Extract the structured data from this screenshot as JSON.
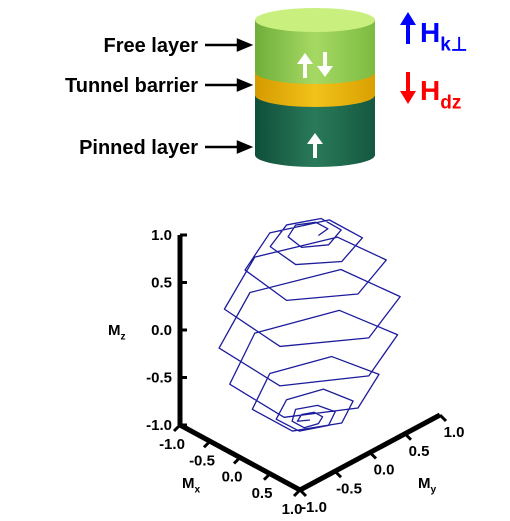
{
  "diagram": {
    "layers": [
      "Free layer",
      "Tunnel barrier",
      "Pinned layer"
    ],
    "fields": [
      {
        "symbol": "H",
        "subscript": "k⊥",
        "color": "#0000ff"
      },
      {
        "symbol": "H",
        "subscript": "dz",
        "color": "#ff0000"
      }
    ]
  },
  "chart_data": {
    "type": "line3d",
    "color": "#1c1c9c",
    "xlabel": {
      "symbol": "M",
      "subscript": "x"
    },
    "ylabel": {
      "symbol": "M",
      "subscript": "y"
    },
    "zlabel": {
      "symbol": "M",
      "subscript": "z"
    },
    "xlim": [
      -1,
      1
    ],
    "ylim": [
      -1,
      1
    ],
    "zlim": [
      -1,
      1
    ],
    "xticks": [
      {
        "value": -1,
        "label": "-1.0"
      },
      {
        "value": -0.5,
        "label": "-0.5"
      },
      {
        "value": 0,
        "label": "0.0"
      },
      {
        "value": 0.5,
        "label": "0.5"
      },
      {
        "value": 1,
        "label": "1.0"
      }
    ],
    "yticks": [
      {
        "value": -1,
        "label": "-1.0"
      },
      {
        "value": -0.5,
        "label": "-0.5"
      },
      {
        "value": 0,
        "label": "0.0"
      },
      {
        "value": 0.5,
        "label": "0.5"
      },
      {
        "value": 1,
        "label": "1.0"
      }
    ],
    "zticks": [
      {
        "value": -1,
        "label": "-1.0"
      },
      {
        "value": -0.5,
        "label": "-0.5"
      },
      {
        "value": 0,
        "label": "0.0"
      },
      {
        "value": 0.5,
        "label": "0.5"
      },
      {
        "value": 1,
        "label": "1.0"
      }
    ],
    "mx": [
      0.14,
      0.1,
      -0.1,
      -0.24,
      -0.12,
      0.14,
      0.31,
      0.17,
      -0.19,
      -0.39,
      -0.22,
      0.24,
      0.53,
      0.29,
      -0.32,
      -0.67,
      -0.36,
      0.38,
      0.8,
      0.42,
      -0.44,
      -0.92,
      -0.47,
      0.48,
      0.98,
      0.5,
      -0.5,
      -1.0,
      -0.5,
      0.5,
      0.98,
      0.48,
      -0.47,
      -0.92,
      -0.44,
      0.42,
      0.8,
      0.38,
      -0.36,
      -0.67,
      -0.32,
      0.29,
      0.53,
      0.24,
      -0.22,
      -0.39,
      -0.19,
      0.17,
      0.31,
      0.14,
      -0.12,
      -0.24,
      -0.1,
      0.1,
      0.14,
      0.07,
      -0.07,
      -0.14,
      -0.07,
      0
    ],
    "my": [
      0,
      0.17,
      0.17,
      0,
      -0.21,
      -0.24,
      0,
      0.3,
      0.32,
      0,
      -0.38,
      -0.41,
      0,
      0.5,
      0.55,
      0,
      -0.62,
      -0.66,
      0,
      0.73,
      0.77,
      0,
      -0.82,
      -0.84,
      0,
      0.86,
      0.87,
      0,
      -0.87,
      -0.86,
      0,
      0.84,
      0.82,
      0,
      -0.77,
      -0.73,
      0,
      0.66,
      0.62,
      0,
      -0.55,
      -0.5,
      0,
      0.41,
      0.38,
      0,
      -0.32,
      -0.3,
      0,
      0.24,
      0.21,
      0,
      -0.17,
      -0.17,
      0,
      0.12,
      0.12,
      0,
      -0.12,
      0
    ],
    "mz": [
      0.99,
      0.98,
      0.98,
      0.97,
      0.97,
      0.96,
      0.95,
      0.94,
      0.93,
      0.92,
      0.9,
      0.88,
      0.85,
      0.82,
      0.78,
      0.74,
      0.7,
      0.65,
      0.6,
      0.54,
      0.47,
      0.4,
      0.33,
      0.27,
      0.2,
      0.13,
      0.07,
      0.0,
      -0.07,
      -0.13,
      -0.2,
      -0.27,
      -0.33,
      -0.4,
      -0.47,
      -0.54,
      -0.6,
      -0.65,
      -0.7,
      -0.74,
      -0.78,
      -0.82,
      -0.85,
      -0.88,
      -0.9,
      -0.92,
      -0.93,
      -0.94,
      -0.95,
      -0.96,
      -0.97,
      -0.97,
      -0.98,
      -0.98,
      -0.99,
      -0.99,
      -0.99,
      -0.99,
      -0.99,
      -1.0
    ]
  }
}
